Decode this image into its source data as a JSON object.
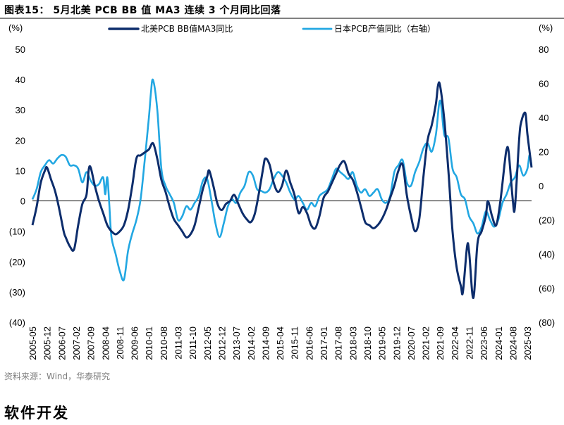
{
  "figure": {
    "title": "图表15：  5月北美 PCB BB 值 MA3 连续 3 个月同比回落",
    "source": "资料来源：Wind，华泰研究",
    "section_heading": "软件开发"
  },
  "colors": {
    "series_na": "#0d2d6c",
    "series_jp": "#22a7e2"
  },
  "chart_data": {
    "type": "line",
    "title": "",
    "left_axis": {
      "unit_label": "(%)",
      "min": -40,
      "max": 50,
      "ticks": [
        50,
        40,
        30,
        20,
        10,
        0,
        -10,
        -20,
        -30,
        -40
      ],
      "tick_labels": [
        "50",
        "40",
        "30",
        "20",
        "10",
        "0",
        "(10)",
        "(20)",
        "(30)",
        "(40)"
      ]
    },
    "right_axis": {
      "unit_label": "(%)",
      "min": -80,
      "max": 80,
      "ticks": [
        80,
        60,
        40,
        20,
        0,
        -20,
        -40,
        -60,
        -80
      ],
      "tick_labels": [
        "80",
        "60",
        "40",
        "20",
        "0",
        "(20)",
        "(40)",
        "(60)",
        "(80)"
      ]
    },
    "x_start": "2005-05",
    "x_end": "2025-05",
    "x_tick_labels": [
      "2005-05",
      "2005-12",
      "2006-07",
      "2007-02",
      "2007-09",
      "2008-04",
      "2008-11",
      "2009-06",
      "2010-01",
      "2010-08",
      "2011-03",
      "2011-10",
      "2012-05",
      "2012-12",
      "2013-07",
      "2014-02",
      "2014-09",
      "2015-04",
      "2015-11",
      "2016-06",
      "2017-01",
      "2017-08",
      "2018-03",
      "2018-10",
      "2019-05",
      "2019-12",
      "2020-07",
      "2021-02",
      "2021-09",
      "2022-04",
      "2022-11",
      "2023-06",
      "2024-01",
      "2024-08",
      "2025-03"
    ],
    "series": [
      {
        "name": "北美PCB BB值MA3同比",
        "axis": "left",
        "points": [
          [
            "2005-05",
            -8
          ],
          [
            "2005-07",
            -2
          ],
          [
            "2005-09",
            6
          ],
          [
            "2005-11",
            10
          ],
          [
            "2005-12",
            11
          ],
          [
            "2006-02",
            7
          ],
          [
            "2006-04",
            3
          ],
          [
            "2006-06",
            -3
          ],
          [
            "2006-08",
            -10
          ],
          [
            "2006-09",
            -12
          ],
          [
            "2006-11",
            -15
          ],
          [
            "2007-01",
            -16
          ],
          [
            "2007-03",
            -8
          ],
          [
            "2007-05",
            -1
          ],
          [
            "2007-07",
            2
          ],
          [
            "2007-08",
            10
          ],
          [
            "2007-09",
            11
          ],
          [
            "2007-11",
            5
          ],
          [
            "2008-01",
            0
          ],
          [
            "2008-03",
            -4
          ],
          [
            "2008-05",
            -8
          ],
          [
            "2008-07",
            -10
          ],
          [
            "2008-09",
            -11
          ],
          [
            "2008-11",
            -10
          ],
          [
            "2009-01",
            -8
          ],
          [
            "2009-03",
            -3
          ],
          [
            "2009-05",
            5
          ],
          [
            "2009-07",
            14
          ],
          [
            "2009-09",
            15
          ],
          [
            "2009-11",
            16
          ],
          [
            "2010-01",
            17
          ],
          [
            "2010-03",
            19
          ],
          [
            "2010-05",
            14
          ],
          [
            "2010-07",
            7
          ],
          [
            "2010-09",
            3
          ],
          [
            "2010-11",
            -2
          ],
          [
            "2011-01",
            -6
          ],
          [
            "2011-03",
            -8
          ],
          [
            "2011-05",
            -10
          ],
          [
            "2011-07",
            -12
          ],
          [
            "2011-09",
            -11
          ],
          [
            "2011-11",
            -8
          ],
          [
            "2012-01",
            -2
          ],
          [
            "2012-03",
            4
          ],
          [
            "2012-05",
            8
          ],
          [
            "2012-06",
            10
          ],
          [
            "2012-08",
            5
          ],
          [
            "2012-10",
            -1
          ],
          [
            "2012-12",
            -3
          ],
          [
            "2013-02",
            -1
          ],
          [
            "2013-04",
            0
          ],
          [
            "2013-06",
            2
          ],
          [
            "2013-08",
            -1
          ],
          [
            "2013-10",
            -4
          ],
          [
            "2013-12",
            -6
          ],
          [
            "2014-02",
            -7
          ],
          [
            "2014-04",
            -4
          ],
          [
            "2014-06",
            3
          ],
          [
            "2014-08",
            11
          ],
          [
            "2014-09",
            14
          ],
          [
            "2014-11",
            12
          ],
          [
            "2015-01",
            6
          ],
          [
            "2015-03",
            3
          ],
          [
            "2015-05",
            5
          ],
          [
            "2015-07",
            10
          ],
          [
            "2015-09",
            6
          ],
          [
            "2015-11",
            2
          ],
          [
            "2016-01",
            -4
          ],
          [
            "2016-03",
            -2
          ],
          [
            "2016-05",
            -4
          ],
          [
            "2016-07",
            -8
          ],
          [
            "2016-09",
            -9
          ],
          [
            "2016-11",
            -5
          ],
          [
            "2017-01",
            1
          ],
          [
            "2017-03",
            3
          ],
          [
            "2017-05",
            6
          ],
          [
            "2017-07",
            9
          ],
          [
            "2017-09",
            12
          ],
          [
            "2017-11",
            13
          ],
          [
            "2018-01",
            9
          ],
          [
            "2018-03",
            7
          ],
          [
            "2018-05",
            3
          ],
          [
            "2018-07",
            -2
          ],
          [
            "2018-09",
            -7
          ],
          [
            "2018-11",
            -8
          ],
          [
            "2019-01",
            -9
          ],
          [
            "2019-03",
            -8
          ],
          [
            "2019-05",
            -6
          ],
          [
            "2019-07",
            -3
          ],
          [
            "2019-09",
            1
          ],
          [
            "2019-11",
            5
          ],
          [
            "2020-01",
            10
          ],
          [
            "2020-03",
            12
          ],
          [
            "2020-05",
            2
          ],
          [
            "2020-07",
            -5
          ],
          [
            "2020-09",
            -10
          ],
          [
            "2020-11",
            -6
          ],
          [
            "2021-01",
            8
          ],
          [
            "2021-03",
            20
          ],
          [
            "2021-05",
            25
          ],
          [
            "2021-07",
            32
          ],
          [
            "2021-08",
            38
          ],
          [
            "2021-09",
            38
          ],
          [
            "2021-11",
            27
          ],
          [
            "2022-01",
            10
          ],
          [
            "2022-03",
            -10
          ],
          [
            "2022-05",
            -22
          ],
          [
            "2022-07",
            -28
          ],
          [
            "2022-08",
            -30
          ],
          [
            "2022-10",
            -15
          ],
          [
            "2022-11",
            -17
          ],
          [
            "2023-01",
            -32
          ],
          [
            "2023-03",
            -14
          ],
          [
            "2023-05",
            -10
          ],
          [
            "2023-07",
            -5
          ],
          [
            "2023-08",
            0
          ],
          [
            "2023-10",
            -5
          ],
          [
            "2023-12",
            -8
          ],
          [
            "2024-02",
            0
          ],
          [
            "2024-04",
            12
          ],
          [
            "2024-05",
            17
          ],
          [
            "2024-06",
            16
          ],
          [
            "2024-08",
            0
          ],
          [
            "2024-09",
            -2
          ],
          [
            "2024-11",
            20
          ],
          [
            "2024-12",
            26
          ],
          [
            "2025-02",
            29
          ],
          [
            "2025-03",
            22
          ],
          [
            "2025-05",
            11
          ]
        ]
      },
      {
        "name": "日本PCB产值同比（右轴）",
        "axis": "right",
        "points": [
          [
            "2005-05",
            -8
          ],
          [
            "2005-07",
            -2
          ],
          [
            "2005-09",
            8
          ],
          [
            "2005-11",
            12
          ],
          [
            "2006-01",
            15
          ],
          [
            "2006-03",
            13
          ],
          [
            "2006-05",
            16
          ],
          [
            "2006-07",
            18
          ],
          [
            "2006-09",
            17
          ],
          [
            "2006-11",
            12
          ],
          [
            "2007-01",
            12
          ],
          [
            "2007-03",
            10
          ],
          [
            "2007-05",
            2
          ],
          [
            "2007-07",
            8
          ],
          [
            "2007-09",
            3
          ],
          [
            "2007-11",
            0
          ],
          [
            "2008-01",
            1
          ],
          [
            "2008-03",
            5
          ],
          [
            "2008-04",
            -5
          ],
          [
            "2008-05",
            5
          ],
          [
            "2008-06",
            -12
          ],
          [
            "2008-07",
            -30
          ],
          [
            "2008-09",
            -40
          ],
          [
            "2008-11",
            -50
          ],
          [
            "2009-01",
            -55
          ],
          [
            "2009-03",
            -38
          ],
          [
            "2009-05",
            -28
          ],
          [
            "2009-07",
            -20
          ],
          [
            "2009-09",
            -8
          ],
          [
            "2009-11",
            15
          ],
          [
            "2010-01",
            40
          ],
          [
            "2010-02",
            55
          ],
          [
            "2010-03",
            62
          ],
          [
            "2010-05",
            45
          ],
          [
            "2010-07",
            10
          ],
          [
            "2010-09",
            0
          ],
          [
            "2010-11",
            -5
          ],
          [
            "2011-01",
            -10
          ],
          [
            "2011-03",
            -20
          ],
          [
            "2011-05",
            -18
          ],
          [
            "2011-07",
            -12
          ],
          [
            "2011-09",
            -14
          ],
          [
            "2011-11",
            -10
          ],
          [
            "2012-01",
            -6
          ],
          [
            "2012-03",
            3
          ],
          [
            "2012-05",
            4
          ],
          [
            "2012-07",
            -8
          ],
          [
            "2012-09",
            -22
          ],
          [
            "2012-11",
            -30
          ],
          [
            "2013-01",
            -22
          ],
          [
            "2013-03",
            -12
          ],
          [
            "2013-05",
            -8
          ],
          [
            "2013-07",
            -10
          ],
          [
            "2013-09",
            -4
          ],
          [
            "2013-11",
            0
          ],
          [
            "2014-01",
            8
          ],
          [
            "2014-03",
            6
          ],
          [
            "2014-05",
            -2
          ],
          [
            "2014-07",
            -3
          ],
          [
            "2014-09",
            -4
          ],
          [
            "2014-11",
            -2
          ],
          [
            "2015-01",
            4
          ],
          [
            "2015-03",
            8
          ],
          [
            "2015-05",
            6
          ],
          [
            "2015-07",
            2
          ],
          [
            "2015-09",
            -4
          ],
          [
            "2015-11",
            -8
          ],
          [
            "2016-01",
            -6
          ],
          [
            "2016-03",
            -10
          ],
          [
            "2016-05",
            -14
          ],
          [
            "2016-07",
            -10
          ],
          [
            "2016-09",
            -12
          ],
          [
            "2016-11",
            -6
          ],
          [
            "2017-01",
            -4
          ],
          [
            "2017-03",
            -2
          ],
          [
            "2017-05",
            4
          ],
          [
            "2017-07",
            10
          ],
          [
            "2017-09",
            8
          ],
          [
            "2017-11",
            6
          ],
          [
            "2018-01",
            4
          ],
          [
            "2018-03",
            8
          ],
          [
            "2018-05",
            0
          ],
          [
            "2018-07",
            -4
          ],
          [
            "2018-09",
            -2
          ],
          [
            "2018-11",
            -6
          ],
          [
            "2019-01",
            -4
          ],
          [
            "2019-03",
            -2
          ],
          [
            "2019-05",
            -8
          ],
          [
            "2019-07",
            -10
          ],
          [
            "2019-09",
            -6
          ],
          [
            "2019-11",
            8
          ],
          [
            "2020-01",
            12
          ],
          [
            "2020-03",
            15
          ],
          [
            "2020-05",
            2
          ],
          [
            "2020-07",
            0
          ],
          [
            "2020-09",
            8
          ],
          [
            "2020-11",
            14
          ],
          [
            "2021-01",
            22
          ],
          [
            "2021-03",
            25
          ],
          [
            "2021-05",
            20
          ],
          [
            "2021-07",
            30
          ],
          [
            "2021-09",
            50
          ],
          [
            "2021-11",
            30
          ],
          [
            "2022-01",
            28
          ],
          [
            "2022-03",
            10
          ],
          [
            "2022-05",
            5
          ],
          [
            "2022-07",
            -5
          ],
          [
            "2022-09",
            -8
          ],
          [
            "2022-11",
            -18
          ],
          [
            "2023-01",
            -22
          ],
          [
            "2023-03",
            -28
          ],
          [
            "2023-05",
            -24
          ],
          [
            "2023-07",
            -15
          ],
          [
            "2023-09",
            -20
          ],
          [
            "2023-11",
            -24
          ],
          [
            "2024-01",
            -20
          ],
          [
            "2024-03",
            -10
          ],
          [
            "2024-05",
            -5
          ],
          [
            "2024-07",
            2
          ],
          [
            "2024-09",
            5
          ],
          [
            "2024-11",
            12
          ],
          [
            "2025-01",
            6
          ],
          [
            "2025-03",
            10
          ],
          [
            "2025-04",
            18
          ],
          [
            "2025-05",
            12
          ]
        ]
      }
    ]
  }
}
